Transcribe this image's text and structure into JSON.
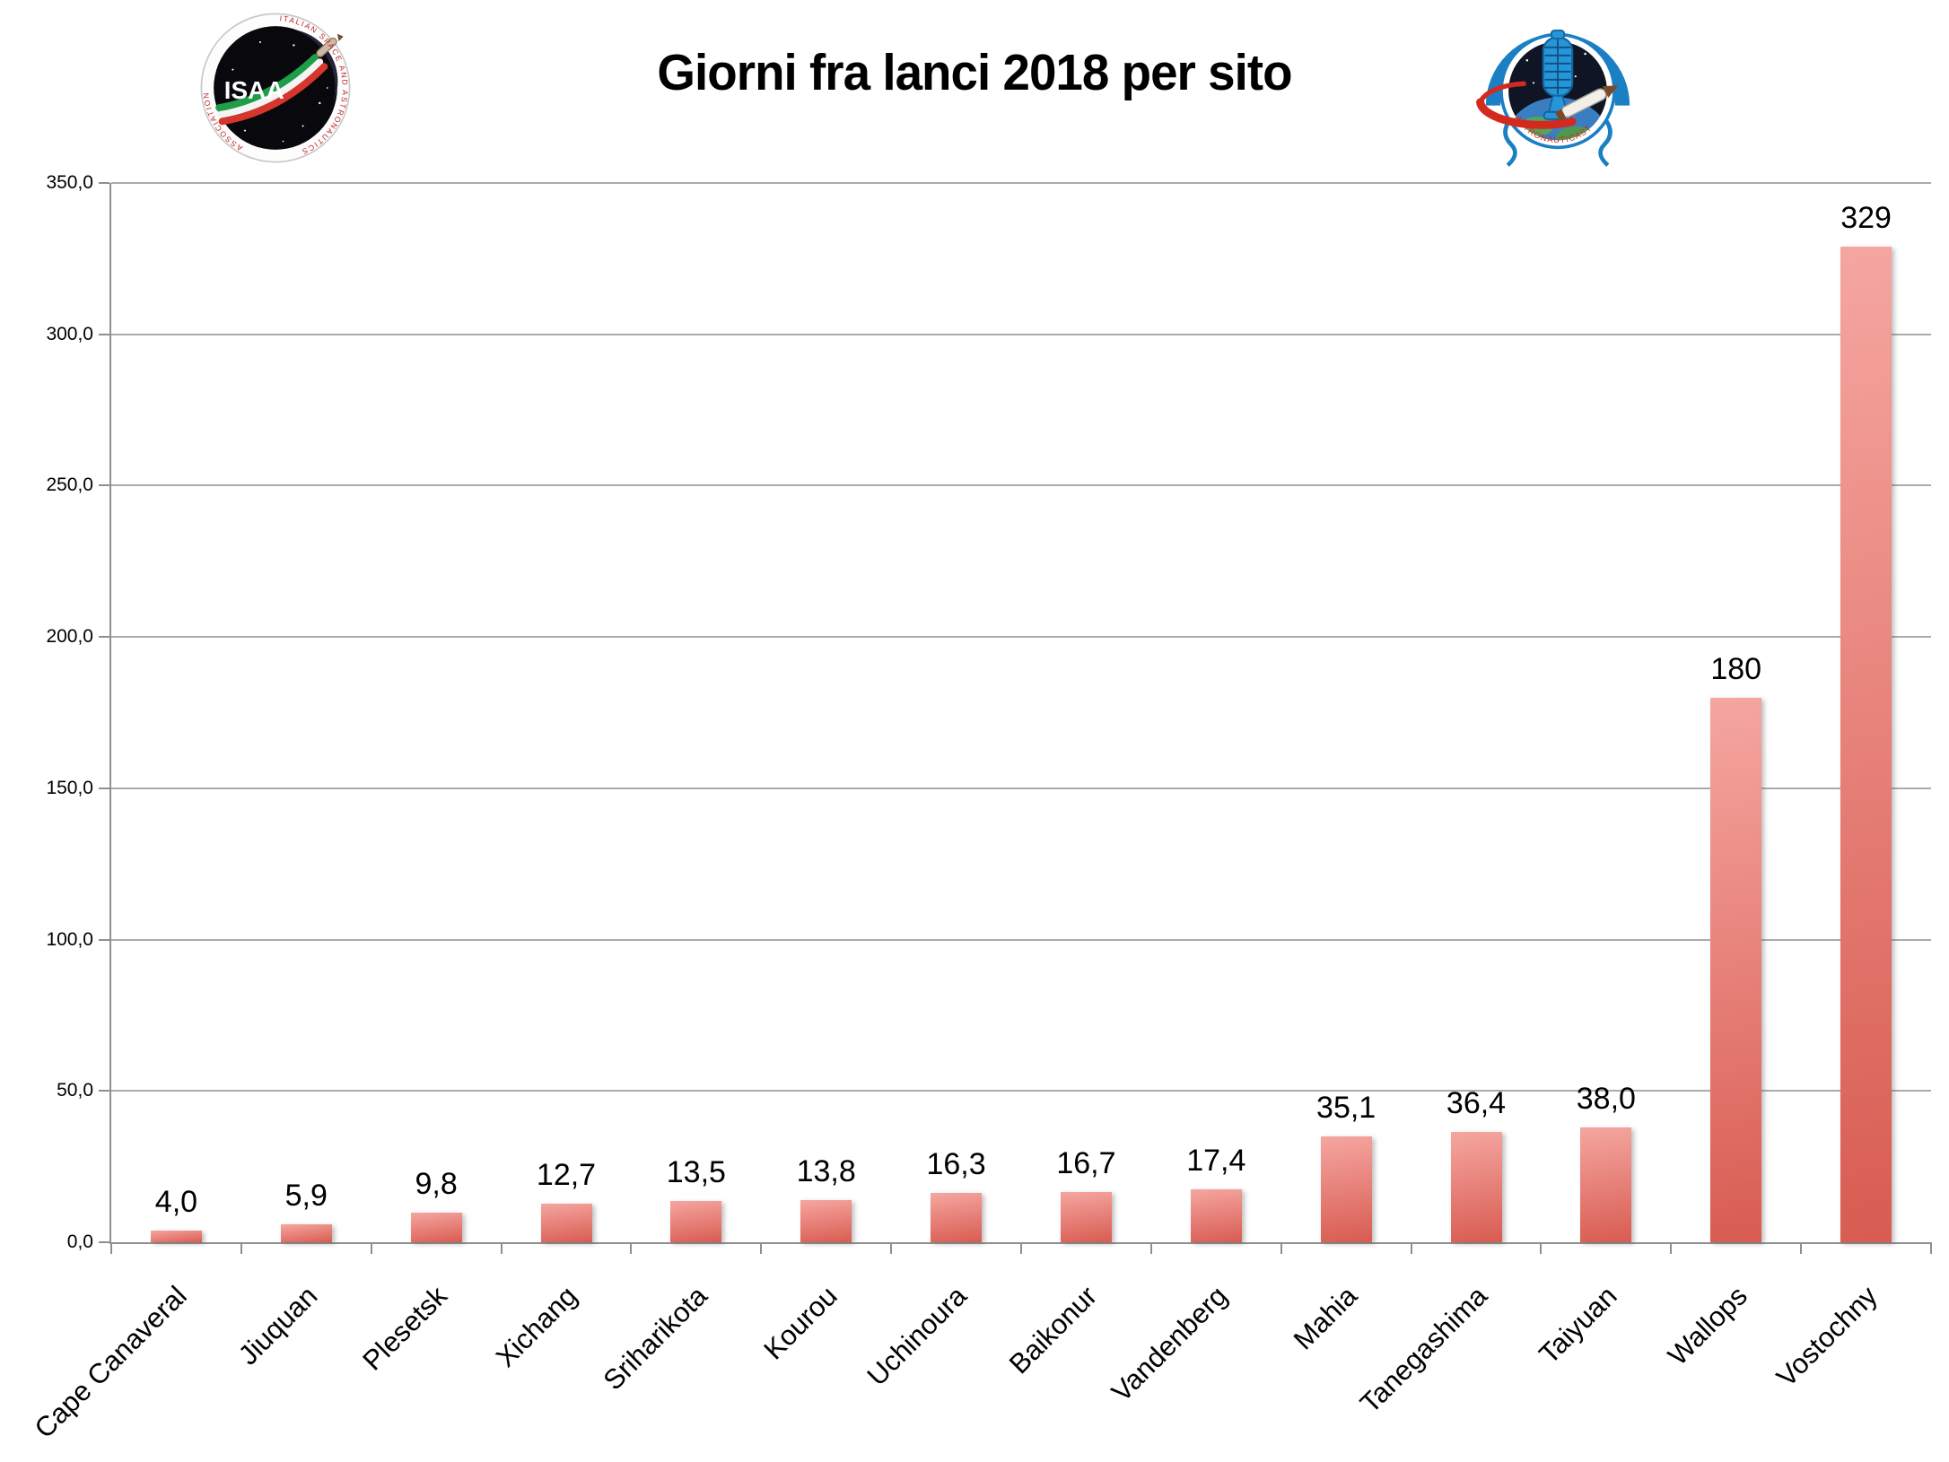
{
  "header": {
    "title": "Giorni fra lanci 2018 per sito",
    "left_logo": {
      "label": "ISAA",
      "rim_text_top": "ITALIAN SPACE AND ASTRONAUTICS",
      "rim_text_bottom": "ASSOCIATION"
    },
    "right_logo": {
      "rim_text_bottom": "ASTRONAUTICAST"
    }
  },
  "chart_data": {
    "type": "bar",
    "title": "Giorni fra lanci 2018 per sito",
    "categories": [
      "Cape Canaveral",
      "Jiuquan",
      "Plesetsk",
      "Xichang",
      "Sriharikota",
      "Kourou",
      "Uchinoura",
      "Baikonur",
      "Vandenberg",
      "Mahia",
      "Tanegashima",
      "Taiyuan",
      "Wallops",
      "Vostochny"
    ],
    "values": [
      4.0,
      5.9,
      9.8,
      12.7,
      13.5,
      13.8,
      16.3,
      16.7,
      17.4,
      35.1,
      36.4,
      38.0,
      180,
      329
    ],
    "value_labels": [
      "4,0",
      "5,9",
      "9,8",
      "12,7",
      "13,5",
      "13,8",
      "16,3",
      "16,7",
      "17,4",
      "35,1",
      "36,4",
      "38,0",
      "180",
      "329"
    ],
    "xlabel": "",
    "ylabel": "",
    "ylim": [
      0,
      350
    ],
    "ytick_step": 50,
    "ytick_labels": [
      "0,0",
      "50,0",
      "100,0",
      "150,0",
      "200,0",
      "250,0",
      "300,0",
      "350,0"
    ],
    "grid": true,
    "legend_position": "none",
    "bar_color_top": "#f5a6a0",
    "bar_color_bottom": "#d85c52",
    "axis_color": "#8f8f8f",
    "grid_color": "#ababab",
    "label_color": "#000000"
  }
}
